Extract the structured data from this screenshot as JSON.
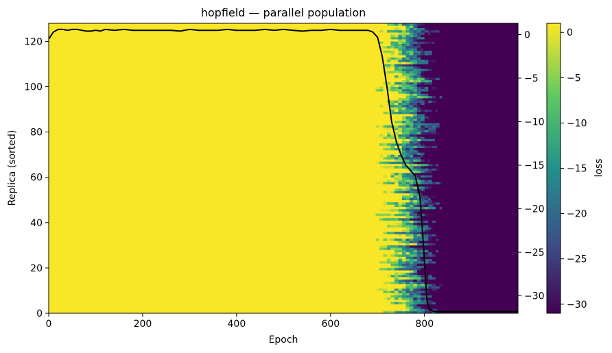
{
  "chart_data": {
    "type": "heatmap",
    "title": "hopfield — parallel population",
    "xlabel": "Epoch",
    "ylabel": "Replica (sorted)",
    "colorbar_label": "loss",
    "xlim": [
      0,
      999
    ],
    "ylim": [
      0,
      128
    ],
    "x_ticks": [
      0,
      200,
      400,
      600,
      800
    ],
    "y_ticks": [
      0,
      20,
      40,
      60,
      80,
      100,
      120
    ],
    "right_ylim": [
      -32,
      1.3
    ],
    "right_y_ticks": [
      0,
      -5,
      -10,
      -15,
      -20,
      -25,
      -30
    ],
    "colorbar_range": [
      -31,
      1
    ],
    "colorbar_ticks": [
      0,
      -5,
      -10,
      -15,
      -20,
      -25,
      -30
    ],
    "colormap": [
      "#440154",
      "#3b528b",
      "#21918c",
      "#5ec962",
      "#fde725"
    ],
    "grid": false,
    "heatmap": {
      "replicas": 128,
      "early_value": 0.8,
      "late_value": -31,
      "transition_start_epoch": [
        700,
        760
      ],
      "transition_end_epoch": [
        780,
        840
      ]
    },
    "series": [
      {
        "x": [
          0,
          10,
          20,
          30,
          40,
          50,
          60,
          70,
          80,
          90,
          100,
          110,
          120,
          140,
          160,
          180,
          200,
          220,
          240,
          260,
          280,
          300,
          320,
          340,
          360,
          380,
          400,
          420,
          440,
          460,
          480,
          500,
          520,
          540,
          560,
          580,
          600,
          620,
          640,
          660,
          680,
          690,
          700,
          710,
          720,
          730,
          740,
          750,
          760,
          770,
          780,
          790,
          795,
          800,
          805,
          810,
          820,
          999
        ],
        "values": [
          -0.5,
          0.3,
          0.6,
          0.6,
          0.5,
          0.6,
          0.6,
          0.5,
          0.4,
          0.4,
          0.5,
          0.4,
          0.6,
          0.5,
          0.6,
          0.5,
          0.5,
          0.5,
          0.5,
          0.5,
          0.4,
          0.6,
          0.5,
          0.5,
          0.5,
          0.6,
          0.5,
          0.5,
          0.5,
          0.6,
          0.5,
          0.6,
          0.5,
          0.4,
          0.5,
          0.5,
          0.6,
          0.5,
          0.5,
          0.5,
          0.5,
          0.3,
          -0.3,
          -2.5,
          -6,
          -10,
          -12.3,
          -13.8,
          -15,
          -15.6,
          -16.2,
          -18.5,
          -22,
          -26,
          -30.5,
          -31.5,
          -31.8,
          -31.8
        ]
      }
    ]
  }
}
